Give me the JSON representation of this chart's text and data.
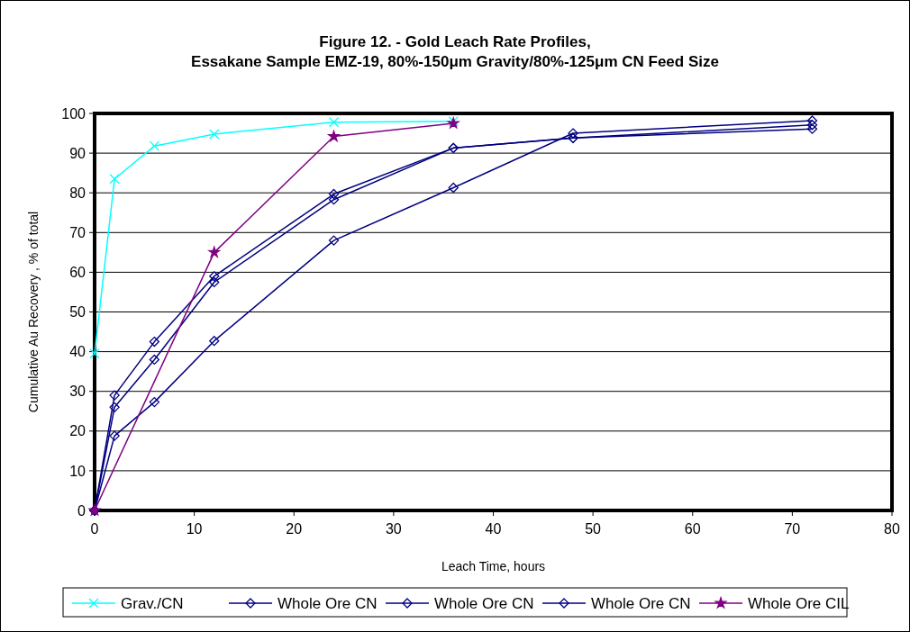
{
  "chart_data": {
    "type": "line",
    "title": "Figure 12. - Gold Leach Rate Profiles,",
    "subtitle": "Essakane Sample EMZ-19, 80%-150μm Gravity/80%-125μm CN Feed Size",
    "xlabel": "Leach Time, hours",
    "ylabel": "Cumulative Au Recovery , % of total",
    "xlim": [
      0,
      80
    ],
    "xticks": [
      0,
      10,
      20,
      30,
      40,
      50,
      60,
      70,
      80
    ],
    "ylim": [
      0,
      100
    ],
    "yticks": [
      0,
      10,
      20,
      30,
      40,
      50,
      60,
      70,
      80,
      90,
      100
    ],
    "grid": "y",
    "legend": "bottom",
    "line_style": "solid",
    "series": [
      {
        "name": "Grav./CN",
        "color": "#00ffff",
        "marker": "cross",
        "x": [
          0,
          2,
          6,
          12,
          24,
          36
        ],
        "values": [
          39.5,
          83.5,
          91.8,
          94.8,
          97.8,
          98.0
        ]
      },
      {
        "name": "Whole Ore CN",
        "color": "#000080",
        "marker": "diamond",
        "x": [
          0,
          2,
          6,
          12,
          24,
          36,
          48,
          72
        ],
        "values": [
          0,
          29,
          42.5,
          59,
          79.7,
          91.3,
          93.8,
          97.1
        ]
      },
      {
        "name": "Whole Ore CN",
        "color": "#000080",
        "marker": "diamond",
        "x": [
          0,
          2,
          6,
          12,
          24,
          36,
          48,
          72
        ],
        "values": [
          0,
          26,
          38,
          57.5,
          78.3,
          91.3,
          93.8,
          96.1
        ]
      },
      {
        "name": "Whole Ore CN",
        "color": "#000080",
        "marker": "diamond",
        "x": [
          0,
          2,
          6,
          12,
          24,
          36,
          48,
          72
        ],
        "values": [
          0,
          18.8,
          27.3,
          42.7,
          68,
          81.3,
          95,
          98.2
        ]
      },
      {
        "name": "Whole Ore CIL",
        "color": "#800080",
        "marker": "star",
        "x": [
          0,
          12,
          24,
          36
        ],
        "values": [
          0,
          65,
          94.2,
          97.5
        ]
      }
    ]
  }
}
